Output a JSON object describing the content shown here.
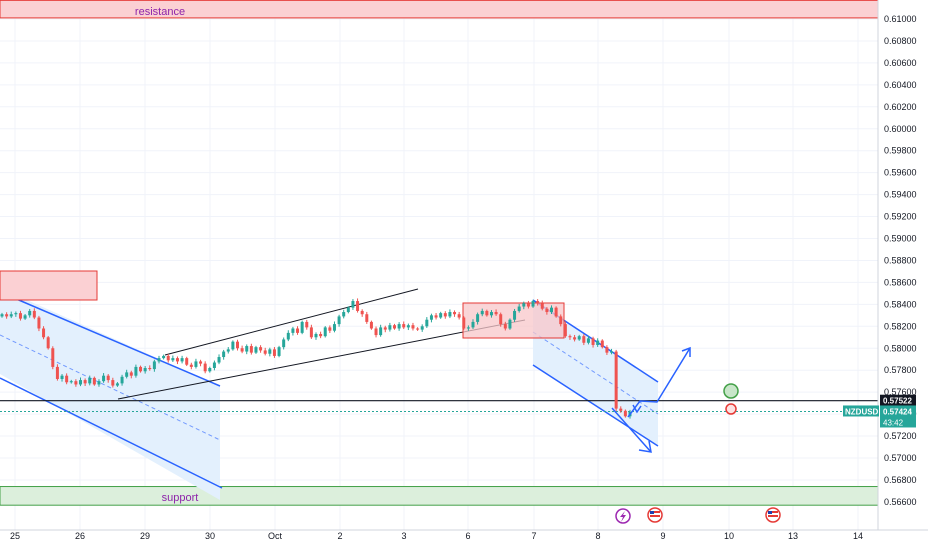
{
  "chart_data": {
    "type": "candlestick",
    "symbol": "NZDUSD",
    "y_axis_ticks": [
      "0.61000",
      "0.60800",
      "0.60600",
      "0.60400",
      "0.60200",
      "0.60000",
      "0.59800",
      "0.59600",
      "0.59400",
      "0.59200",
      "0.59000",
      "0.58800",
      "0.58600",
      "0.58400",
      "0.58200",
      "0.58000",
      "0.57800",
      "0.57600",
      "0.57400",
      "0.57200",
      "0.57000",
      "0.56800",
      "0.56600"
    ],
    "x_axis_ticks": [
      "25",
      "26",
      "29",
      "30",
      "Oct",
      "2",
      "3",
      "6",
      "7",
      "8",
      "9",
      "10",
      "13",
      "14"
    ],
    "ylim": [
      0.5656,
      0.6115
    ],
    "zones": {
      "resistance": {
        "label": "resistance",
        "from": 0.6101,
        "to": 0.6117
      },
      "support": {
        "label": "support",
        "from": 0.5657,
        "to": 0.5674
      }
    },
    "horizontal_line": {
      "price_label": "0.57522",
      "value": 0.57522
    },
    "current_price": {
      "symbol_label": "NZDUSD",
      "price_label": "0.57424",
      "countdown": "43:42",
      "value": 0.57424
    },
    "colors": {
      "up": "#26a69a",
      "down": "#ef5350",
      "channel": "#2962ff",
      "channel_fill": "#e3f0fd",
      "box_fill": "#f8c7ca",
      "box_stroke": "#e53935",
      "support_fill": "#dcefdc",
      "support_stroke": "#43a047",
      "wedge": "#131722"
    },
    "candles_close": [
      0.5831,
      0.5829,
      0.5831,
      0.5832,
      0.5827,
      0.583,
      0.5834,
      0.5828,
      0.5818,
      0.581,
      0.58,
      0.5783,
      0.5772,
      0.5775,
      0.5769,
      0.577,
      0.5767,
      0.5771,
      0.5768,
      0.5773,
      0.5767,
      0.577,
      0.5775,
      0.5771,
      0.5766,
      0.5768,
      0.5774,
      0.5778,
      0.5775,
      0.5783,
      0.5779,
      0.5782,
      0.5781,
      0.5788,
      0.5791,
      0.5793,
      0.5789,
      0.5791,
      0.5788,
      0.5791,
      0.5785,
      0.5783,
      0.5788,
      0.5786,
      0.5779,
      0.5782,
      0.5787,
      0.5792,
      0.5797,
      0.5799,
      0.5806,
      0.58,
      0.5797,
      0.5802,
      0.5796,
      0.5801,
      0.5798,
      0.5795,
      0.5799,
      0.5793,
      0.5801,
      0.5808,
      0.5814,
      0.5818,
      0.5814,
      0.5824,
      0.5819,
      0.581,
      0.5813,
      0.5811,
      0.5819,
      0.5816,
      0.5822,
      0.5829,
      0.5833,
      0.5837,
      0.5843,
      0.5834,
      0.5831,
      0.5824,
      0.5818,
      0.5812,
      0.5819,
      0.5817,
      0.5821,
      0.5818,
      0.5822,
      0.5819,
      0.5821,
      0.5818,
      0.5817,
      0.582,
      0.5826,
      0.583,
      0.5828,
      0.5832,
      0.5829,
      0.5833,
      0.5831,
      0.5828,
      0.5818,
      0.5819,
      0.5824,
      0.5831,
      0.5834,
      0.583,
      0.5833,
      0.5831,
      0.5822,
      0.5818,
      0.5826,
      0.5834,
      0.5838,
      0.5841,
      0.5838,
      0.5843,
      0.5841,
      0.5836,
      0.5833,
      0.5837,
      0.5829,
      0.5822,
      0.5811,
      0.581,
      0.5808,
      0.5811,
      0.5805,
      0.5809,
      0.5803,
      0.5807,
      0.5801,
      0.5796,
      0.5797,
      0.5745,
      0.5743,
      0.5738,
      0.5742
    ]
  }
}
